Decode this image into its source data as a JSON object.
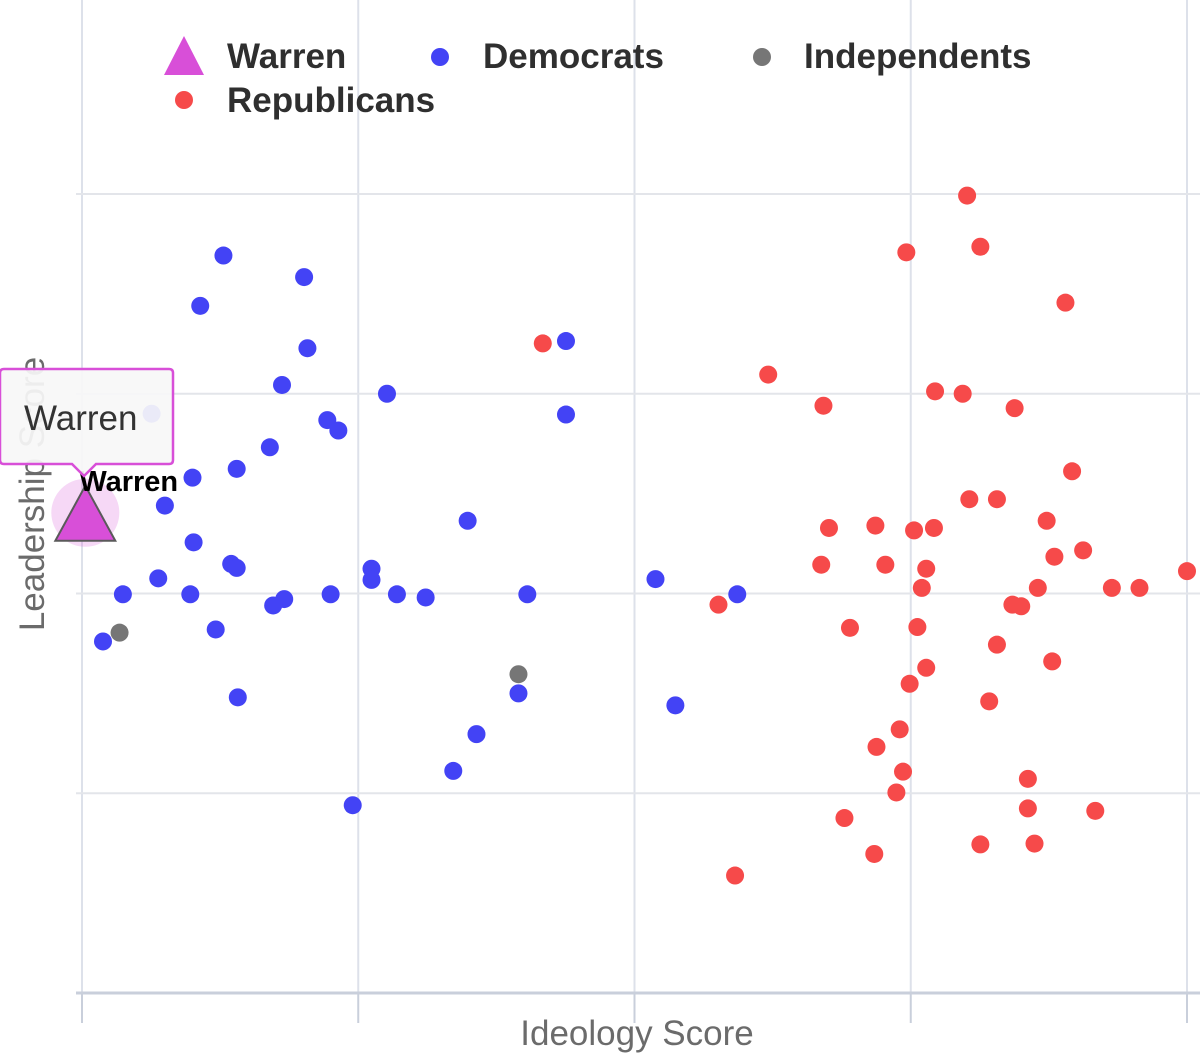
{
  "chart_data": {
    "type": "scatter",
    "xlabel": "Ideology Score",
    "ylabel": "Leadership Score",
    "xlim": [
      -0.02,
      1.02
    ],
    "ylim": [
      -0.02,
      1.08
    ],
    "x_gridlines": [
      0,
      0.25,
      0.5,
      0.75,
      1.0
    ],
    "y_gridlines": [
      0,
      0.25,
      0.5,
      0.75,
      1.0
    ],
    "grid": true,
    "legend": {
      "placement": "top-left"
    },
    "series": [
      {
        "name": "Warren",
        "marker": "triangle",
        "color": "#d84fd8",
        "points": [
          [
            0.003,
            0.601
          ]
        ]
      },
      {
        "name": "Democrats",
        "marker": "circle",
        "color": "#4343f5",
        "points": [
          [
            0.128,
            0.923
          ],
          [
            0.201,
            0.896
          ],
          [
            0.107,
            0.86
          ],
          [
            0.204,
            0.807
          ],
          [
            0.181,
            0.761
          ],
          [
            0.276,
            0.75
          ],
          [
            0.222,
            0.717
          ],
          [
            0.232,
            0.704
          ],
          [
            0.063,
            0.725
          ],
          [
            0.17,
            0.683
          ],
          [
            0.14,
            0.656
          ],
          [
            0.1,
            0.645
          ],
          [
            0.075,
            0.61
          ],
          [
            0.101,
            0.564
          ],
          [
            0.135,
            0.537
          ],
          [
            0.14,
            0.532
          ],
          [
            0.069,
            0.519
          ],
          [
            0.098,
            0.499
          ],
          [
            0.037,
            0.499
          ],
          [
            0.183,
            0.493
          ],
          [
            0.173,
            0.485
          ],
          [
            0.225,
            0.499
          ],
          [
            0.262,
            0.531
          ],
          [
            0.262,
            0.517
          ],
          [
            0.285,
            0.499
          ],
          [
            0.311,
            0.495
          ],
          [
            0.019,
            0.44
          ],
          [
            0.121,
            0.455
          ],
          [
            0.141,
            0.37
          ],
          [
            0.349,
            0.591
          ],
          [
            0.438,
            0.724
          ],
          [
            0.438,
            0.816
          ],
          [
            0.403,
            0.499
          ],
          [
            0.519,
            0.518
          ],
          [
            0.593,
            0.499
          ],
          [
            0.395,
            0.375
          ],
          [
            0.357,
            0.324
          ],
          [
            0.336,
            0.278
          ],
          [
            0.537,
            0.36
          ],
          [
            0.245,
            0.235
          ]
        ]
      },
      {
        "name": "Independents",
        "marker": "circle",
        "color": "#767676",
        "points": [
          [
            0.034,
            0.451
          ],
          [
            0.395,
            0.399
          ]
        ]
      },
      {
        "name": "Republicans",
        "marker": "circle",
        "color": "#f64a4a",
        "points": [
          [
            0.417,
            0.813
          ],
          [
            0.801,
            0.998
          ],
          [
            0.813,
            0.934
          ],
          [
            0.746,
            0.927
          ],
          [
            0.89,
            0.864
          ],
          [
            0.772,
            0.753
          ],
          [
            0.621,
            0.774
          ],
          [
            0.671,
            0.735
          ],
          [
            0.797,
            0.75
          ],
          [
            0.844,
            0.732
          ],
          [
            0.896,
            0.653
          ],
          [
            0.753,
            0.579
          ],
          [
            0.803,
            0.618
          ],
          [
            0.828,
            0.618
          ],
          [
            0.873,
            0.591
          ],
          [
            0.676,
            0.582
          ],
          [
            0.718,
            0.585
          ],
          [
            0.771,
            0.582
          ],
          [
            0.88,
            0.546
          ],
          [
            0.906,
            0.554
          ],
          [
            0.669,
            0.536
          ],
          [
            0.727,
            0.536
          ],
          [
            0.764,
            0.531
          ],
          [
            0.76,
            0.507
          ],
          [
            0.865,
            0.507
          ],
          [
            0.85,
            0.484
          ],
          [
            0.842,
            0.486
          ],
          [
            0.932,
            0.507
          ],
          [
            0.957,
            0.507
          ],
          [
            1.0,
            0.528
          ],
          [
            0.576,
            0.486
          ],
          [
            0.695,
            0.457
          ],
          [
            0.756,
            0.458
          ],
          [
            0.828,
            0.436
          ],
          [
            0.878,
            0.415
          ],
          [
            0.764,
            0.407
          ],
          [
            0.749,
            0.387
          ],
          [
            0.821,
            0.365
          ],
          [
            0.74,
            0.33
          ],
          [
            0.719,
            0.308
          ],
          [
            0.743,
            0.277
          ],
          [
            0.737,
            0.251
          ],
          [
            0.856,
            0.268
          ],
          [
            0.856,
            0.231
          ],
          [
            0.917,
            0.228
          ],
          [
            0.69,
            0.219
          ],
          [
            0.717,
            0.174
          ],
          [
            0.813,
            0.186
          ],
          [
            0.862,
            0.187
          ],
          [
            0.591,
            0.147
          ]
        ]
      }
    ],
    "annotations": [
      {
        "text": "Warren",
        "target_series": "Warren"
      }
    ],
    "tooltip": {
      "text": "Warren"
    }
  }
}
